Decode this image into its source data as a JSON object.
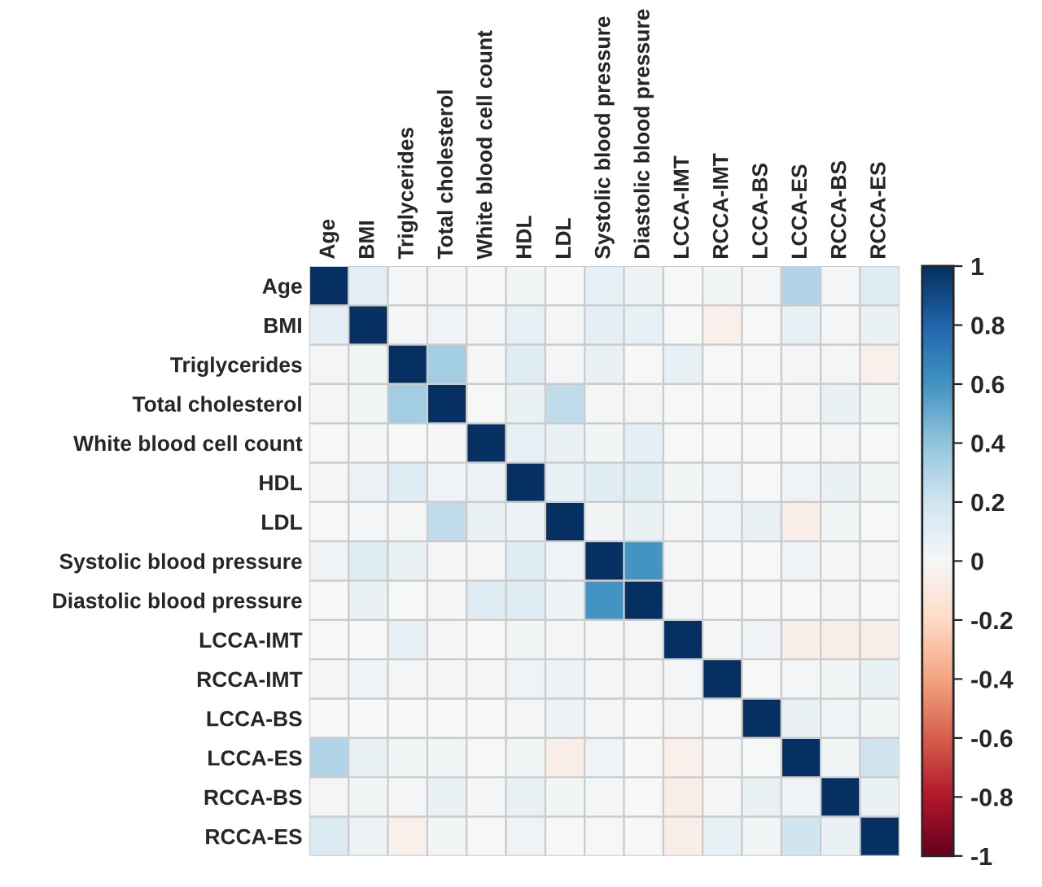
{
  "chart_data": {
    "type": "heatmap",
    "categories": [
      "Age",
      "BMI",
      "Triglycerides",
      "Total cholesterol",
      "White blood cell count",
      "HDL",
      "LDL",
      "Systolic blood pressure",
      "Diastolic blood pressure",
      "LCCA-IMT",
      "RCCA-IMT",
      "LCCA-BS",
      "LCCA-ES",
      "RCCA-BS",
      "RCCA-ES"
    ],
    "y_categories": [
      "Age",
      "BMI",
      "Triglycerides",
      "Total cholesterol",
      "White blood cell count",
      "HDL",
      "LDL",
      "Systolic blood pressure",
      "Diastolic blood pressure",
      "LCCA-IMT",
      "RCCA-IMT",
      "LCCA-BS",
      "LCCA-ES",
      "RCCA-BS",
      "RCCA-ES"
    ],
    "cells": [
      [
        1,
        0.1,
        0.02,
        0.02,
        0,
        0.03,
        0,
        0.08,
        0.05,
        0,
        0.03,
        0.02,
        0.3,
        0.02,
        0.12
      ],
      [
        0.1,
        1,
        0.02,
        0.04,
        0.01,
        0.08,
        0.02,
        0.1,
        0.08,
        0,
        -0.05,
        0,
        0.08,
        0.02,
        0.07
      ],
      [
        0.02,
        0.03,
        1,
        0.35,
        0.01,
        0.12,
        0.02,
        0.07,
        0,
        0.08,
        0,
        0,
        0.02,
        0.02,
        -0.05
      ],
      [
        0.02,
        0.03,
        0.35,
        1,
        0,
        0.07,
        0.25,
        0.02,
        0.02,
        0,
        0,
        0,
        0.02,
        0.07,
        0.03
      ],
      [
        0,
        0.01,
        0,
        0.01,
        1,
        0.08,
        0.07,
        0.03,
        0.1,
        0,
        0,
        0,
        0,
        0.02,
        0
      ],
      [
        0.02,
        0.06,
        0.12,
        0.04,
        0.06,
        1,
        0.07,
        0.12,
        0.12,
        0.03,
        0.04,
        0,
        0.04,
        0.07,
        0.03
      ],
      [
        0,
        0.02,
        0.02,
        0.25,
        0.07,
        0.06,
        1,
        0.03,
        0.07,
        0.02,
        0.04,
        0.07,
        -0.07,
        0.03,
        0
      ],
      [
        0.04,
        0.12,
        0.07,
        0.02,
        0.02,
        0.12,
        0.04,
        1,
        0.6,
        0.02,
        0,
        0,
        0.04,
        0.02,
        0.02
      ],
      [
        0,
        0.07,
        0,
        0.02,
        0.12,
        0.12,
        0.05,
        0.6,
        1,
        0.02,
        0,
        0,
        0,
        0.02,
        0
      ],
      [
        0,
        0,
        0.08,
        0.02,
        0,
        0.03,
        0.02,
        0.02,
        0.02,
        1,
        0.02,
        0.04,
        -0.07,
        -0.07,
        -0.07
      ],
      [
        0.02,
        0.04,
        0.02,
        0.02,
        0.02,
        0.04,
        0.05,
        0.02,
        0.02,
        0.02,
        1,
        0,
        0.02,
        0.03,
        0.07
      ],
      [
        0,
        0,
        0,
        0,
        0,
        0.02,
        0.06,
        0.02,
        0,
        0.02,
        0,
        1,
        0.07,
        0.04,
        0.03
      ],
      [
        0.3,
        0.07,
        0.03,
        0.03,
        0,
        0.03,
        -0.07,
        0.04,
        0,
        -0.05,
        0.02,
        0,
        1,
        0.03,
        0.2
      ],
      [
        0.02,
        0.03,
        0.02,
        0.07,
        0.02,
        0.07,
        0.03,
        0.02,
        0,
        -0.07,
        0.02,
        0.07,
        0.04,
        1,
        0.07
      ],
      [
        0.15,
        0.05,
        -0.05,
        0.03,
        0,
        0.04,
        0,
        0,
        0,
        -0.07,
        0.08,
        0.03,
        0.2,
        0.07,
        1
      ]
    ],
    "clim": [
      -1,
      1
    ],
    "cticks": [
      1,
      0.8,
      0.6,
      0.4,
      0.2,
      0,
      -0.2,
      -0.4,
      -0.6,
      -0.8,
      -1
    ]
  }
}
